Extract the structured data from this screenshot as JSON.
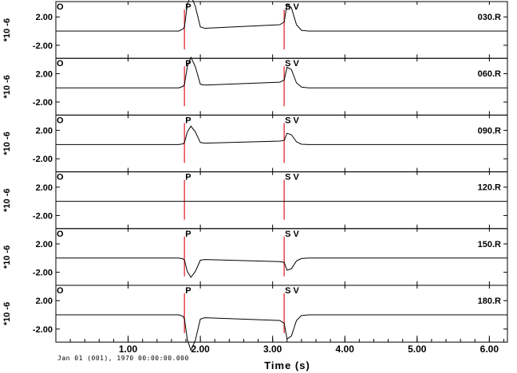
{
  "chart_data": {
    "type": "line",
    "xlabel": "Time (s)",
    "date_label": "Jan 01 (001), 1970 00:00:00.000",
    "x_ticks": [
      "1.00",
      "2.00",
      "3.00",
      "4.00",
      "5.00",
      "6.00"
    ],
    "x_tick_values": [
      1,
      2,
      3,
      4,
      5,
      6
    ],
    "xlim": [
      0,
      6.25
    ],
    "y_ticks": [
      "2.00",
      "-2.00"
    ],
    "y_tick_values": [
      2,
      -2
    ],
    "ylim": [
      -4.0,
      4.0
    ],
    "y_exponent_label": "*10 -6",
    "markers": [
      {
        "label": "O",
        "time": 0.0
      },
      {
        "label": "P",
        "time": 1.78
      },
      {
        "label": "SV",
        "time": 3.16
      }
    ],
    "marker_color": "#e8474f",
    "traces": [
      {
        "name": "030.R",
        "x": [
          0,
          1.7,
          1.76,
          1.78,
          1.82,
          1.87,
          1.93,
          2.0,
          2.06,
          3.1,
          3.16,
          3.2,
          3.26,
          3.33,
          3.4,
          3.5,
          6.25
        ],
        "y": [
          0,
          0,
          0.3,
          0.6,
          3.8,
          5.0,
          3.5,
          0.6,
          0.4,
          0.9,
          1.3,
          3.8,
          3.3,
          0.9,
          0.1,
          0,
          0
        ]
      },
      {
        "name": "060.R",
        "x": [
          0,
          1.7,
          1.76,
          1.78,
          1.82,
          1.87,
          1.93,
          2.0,
          2.06,
          3.1,
          3.16,
          3.2,
          3.26,
          3.33,
          3.4,
          3.5,
          6.25
        ],
        "y": [
          0,
          0,
          0.2,
          0.5,
          3.0,
          4.3,
          3.0,
          0.5,
          0.4,
          0.8,
          1.1,
          2.9,
          2.6,
          0.7,
          0.1,
          0,
          0
        ]
      },
      {
        "name": "090.R",
        "x": [
          0,
          1.7,
          1.76,
          1.78,
          1.82,
          1.87,
          1.93,
          2.0,
          2.06,
          3.1,
          3.16,
          3.2,
          3.26,
          3.33,
          3.4,
          3.5,
          6.25
        ],
        "y": [
          0,
          0,
          0.1,
          0.3,
          1.8,
          2.6,
          1.8,
          0.3,
          0.2,
          0.5,
          0.6,
          1.6,
          1.4,
          0.4,
          0.05,
          0,
          0
        ]
      },
      {
        "name": "120.R",
        "x": [
          0,
          6.25
        ],
        "y": [
          0,
          0
        ]
      },
      {
        "name": "150.R",
        "x": [
          0,
          1.7,
          1.76,
          1.78,
          1.82,
          1.87,
          1.93,
          2.0,
          2.06,
          3.1,
          3.16,
          3.2,
          3.26,
          3.33,
          3.4,
          3.5,
          6.25
        ],
        "y": [
          0,
          0,
          -0.1,
          -0.3,
          -1.9,
          -2.7,
          -1.9,
          -0.3,
          -0.2,
          -0.5,
          -0.6,
          -1.7,
          -1.5,
          -0.4,
          -0.05,
          0,
          0
        ]
      },
      {
        "name": "180.R",
        "x": [
          0,
          1.7,
          1.76,
          1.78,
          1.82,
          1.87,
          1.93,
          2.0,
          2.06,
          3.1,
          3.16,
          3.2,
          3.26,
          3.33,
          3.4,
          3.5,
          6.25
        ],
        "y": [
          0,
          0,
          -0.2,
          -0.6,
          -3.5,
          -5.0,
          -3.6,
          -0.6,
          -0.4,
          -0.8,
          -1.2,
          -3.4,
          -3.0,
          -0.8,
          -0.1,
          0,
          0
        ]
      }
    ]
  }
}
